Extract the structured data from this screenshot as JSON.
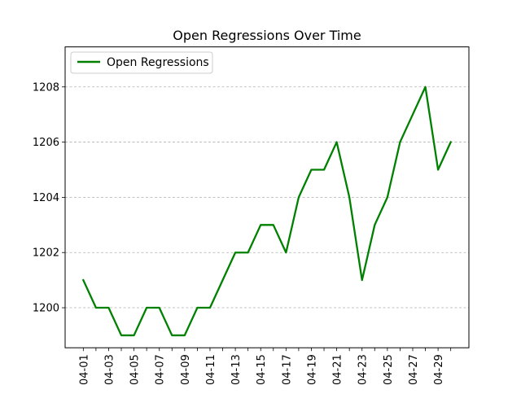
{
  "chart_data": {
    "type": "line",
    "title": "Open Regressions Over Time",
    "xlabel": "",
    "ylabel": "",
    "x": [
      "04-01",
      "04-02",
      "04-03",
      "04-04",
      "04-05",
      "04-06",
      "04-07",
      "04-08",
      "04-09",
      "04-10",
      "04-11",
      "04-12",
      "04-13",
      "04-14",
      "04-15",
      "04-16",
      "04-17",
      "04-18",
      "04-19",
      "04-20",
      "04-21",
      "04-22",
      "04-23",
      "04-24",
      "04-25",
      "04-26",
      "04-27",
      "04-28",
      "04-29",
      "04-30"
    ],
    "x_tick_labels": [
      "04-01",
      "04-03",
      "04-05",
      "04-07",
      "04-09",
      "04-11",
      "04-13",
      "04-15",
      "04-17",
      "04-19",
      "04-21",
      "04-23",
      "04-25",
      "04-27",
      "04-29"
    ],
    "series": [
      {
        "name": "Open Regressions",
        "color": "#008000",
        "values": [
          1201,
          1200,
          1200,
          1199,
          1199,
          1200,
          1200,
          1199,
          1199,
          1200,
          1200,
          1201,
          1202,
          1202,
          1203,
          1203,
          1202,
          1204,
          1205,
          1205,
          1206,
          1204,
          1201,
          1203,
          1204,
          1206,
          1207,
          1208,
          1205,
          1206
        ]
      }
    ],
    "ylim": [
      1198.55,
      1209.45
    ],
    "y_ticks": [
      1200,
      1202,
      1204,
      1206,
      1208
    ],
    "grid": "y-dashed",
    "legend": "top-left"
  }
}
